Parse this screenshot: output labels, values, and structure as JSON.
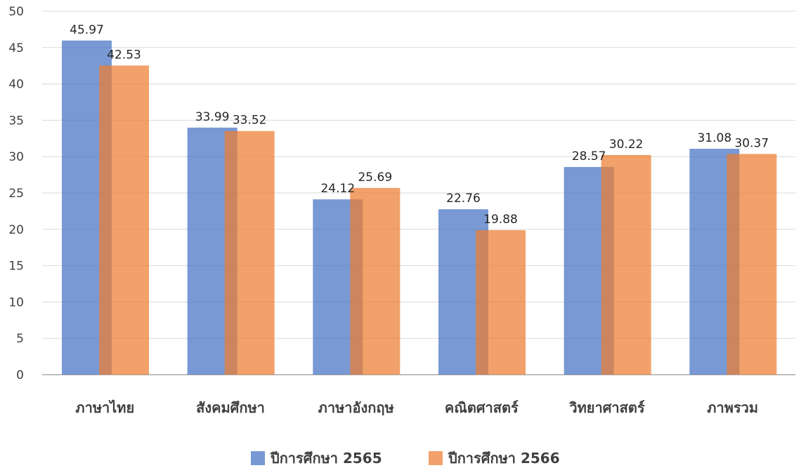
{
  "chart_data": {
    "type": "bar",
    "categories": [
      "ภาษาไทย",
      "สังคมศึกษา",
      "ภาษาอังกฤษ",
      "คณิตศาสตร์",
      "วิทยาศาสตร์",
      "ภาพรวม"
    ],
    "series": [
      {
        "name": "ปีการศึกษา 2565",
        "values": [
          45.97,
          33.99,
          24.12,
          22.76,
          28.57,
          31.08
        ],
        "labels": [
          "45.97",
          "33.99",
          "24.12",
          "22.76",
          "28.57",
          "31.08"
        ],
        "color": "#4472C4"
      },
      {
        "name": "ปีการศึกษา 2566",
        "values": [
          42.53,
          33.52,
          25.69,
          19.88,
          30.22,
          30.37
        ],
        "labels": [
          "42.53",
          "33.52",
          "25.69",
          "19.88",
          "30.22",
          "30.37"
        ],
        "color": "#ED7D31"
      }
    ],
    "yticks": [
      "0",
      "5",
      "10",
      "15",
      "20",
      "25",
      "30",
      "35",
      "40",
      "45",
      "50"
    ],
    "ylim": [
      0,
      50
    ],
    "grid": true,
    "legend": "bottom",
    "title": "",
    "xlabel": "",
    "ylabel": ""
  }
}
